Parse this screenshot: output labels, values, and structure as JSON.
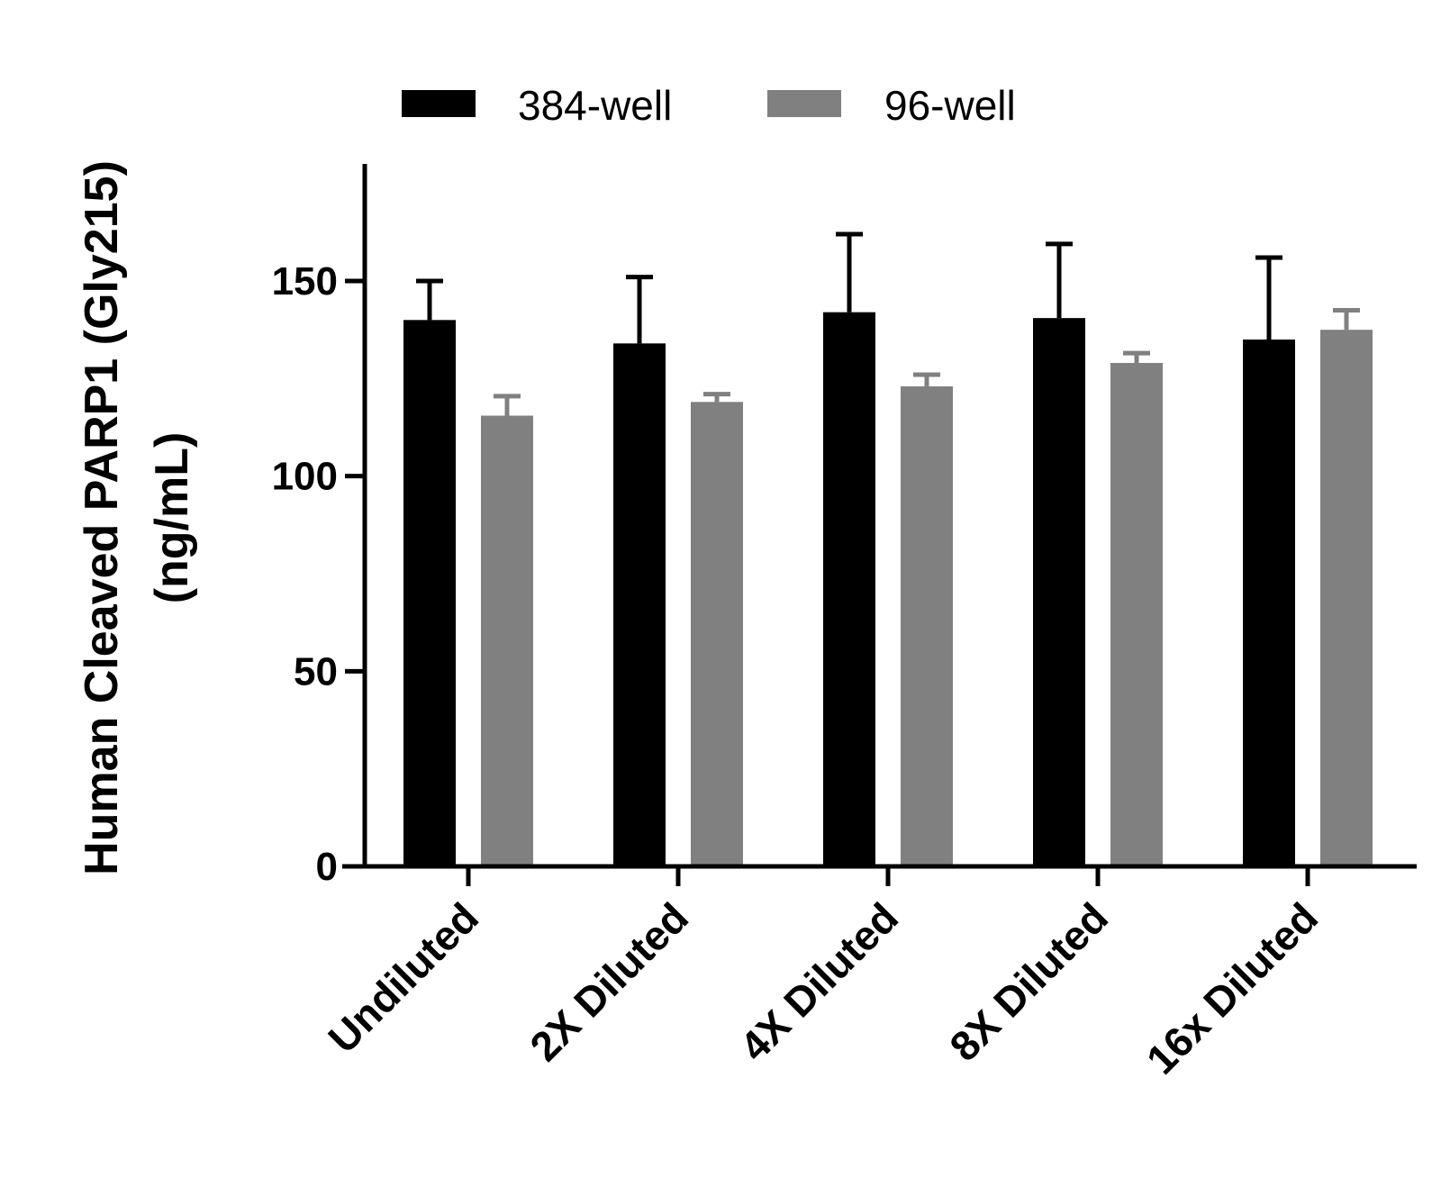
{
  "chart_data": {
    "type": "bar",
    "title": "",
    "xlabel": "",
    "ylabel_lines": [
      "Human Cleaved PARP1 (Gly215)",
      "(ng/mL)"
    ],
    "categories": [
      "Undiluted",
      "2X Diluted",
      "4X Diluted",
      "8X Diluted",
      "16x Diluted"
    ],
    "series": [
      {
        "name": "384-well",
        "color": "#000000",
        "values": [
          140,
          134,
          142,
          140.5,
          135
        ],
        "error_upper": [
          10,
          17,
          20,
          19,
          21
        ]
      },
      {
        "name": "96-well",
        "color": "#808080",
        "values": [
          115.5,
          119,
          123,
          129,
          137.5
        ],
        "error_upper": [
          5,
          2,
          3,
          2.5,
          5
        ]
      }
    ],
    "ylim": [
      0,
      180
    ],
    "yticks": [
      0,
      50,
      100,
      150
    ],
    "grid": false,
    "legend_position": "top"
  }
}
